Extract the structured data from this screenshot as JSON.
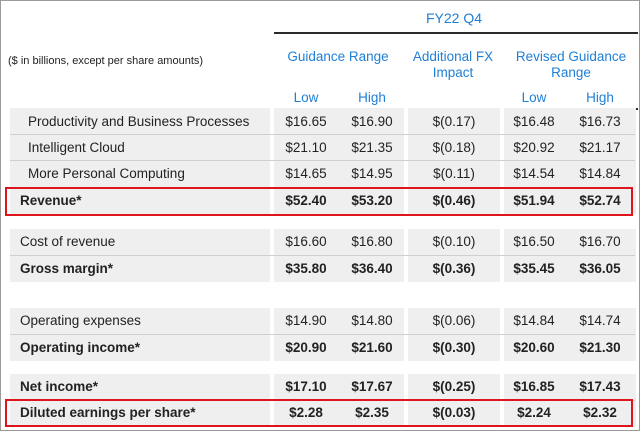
{
  "header": {
    "period": "FY22 Q4",
    "units_note": "($ in billions, except per share amounts)",
    "columns": [
      {
        "label": "Guidance Range"
      },
      {
        "label": "Additional FX Impact"
      },
      {
        "label": "Revised Guidance Range"
      }
    ],
    "sub_low_1": "Low",
    "sub_high_1": "High",
    "sub_low_2": "Low",
    "sub_high_2": "High"
  },
  "rows": [
    {
      "label": "Productivity and Business Processes",
      "low": "$16.65",
      "high": "$16.90",
      "fx": "$(0.17)",
      "rlow": "$16.48",
      "rhigh": "$16.73"
    },
    {
      "label": "Intelligent Cloud",
      "low": "$21.10",
      "high": "$21.35",
      "fx": "$(0.18)",
      "rlow": "$20.92",
      "rhigh": "$21.17"
    },
    {
      "label": "More Personal Computing",
      "low": "$14.65",
      "high": "$14.95",
      "fx": "$(0.11)",
      "rlow": "$14.54",
      "rhigh": "$14.84"
    },
    {
      "label": "Revenue*",
      "low": "$52.40",
      "high": "$53.20",
      "fx": "$(0.46)",
      "rlow": "$51.94",
      "rhigh": "$52.74"
    },
    {
      "label": "Cost of revenue",
      "low": "$16.60",
      "high": "$16.80",
      "fx": "$(0.10)",
      "rlow": "$16.50",
      "rhigh": "$16.70"
    },
    {
      "label": "Gross margin*",
      "low": "$35.80",
      "high": "$36.40",
      "fx": "$(0.36)",
      "rlow": "$35.45",
      "rhigh": "$36.05"
    },
    {
      "label": "Operating expenses",
      "low": "$14.90",
      "high": "$14.80",
      "fx": "$(0.06)",
      "rlow": "$14.84",
      "rhigh": "$14.74"
    },
    {
      "label": "Operating income*",
      "low": "$20.90",
      "high": "$21.60",
      "fx": "$(0.30)",
      "rlow": "$20.60",
      "rhigh": "$21.30"
    },
    {
      "label": "Net income*",
      "low": "$17.10",
      "high": "$17.67",
      "fx": "$(0.25)",
      "rlow": "$16.85",
      "rhigh": "$17.43"
    },
    {
      "label": "Diluted earnings per share*",
      "low": "$2.28",
      "high": "$2.35",
      "fx": "$(0.03)",
      "rlow": "$2.24",
      "rhigh": "$2.32"
    }
  ],
  "colors": {
    "accent": "#1f7fd6",
    "highlight": "#e0141c",
    "row_bg": "#efefef"
  }
}
